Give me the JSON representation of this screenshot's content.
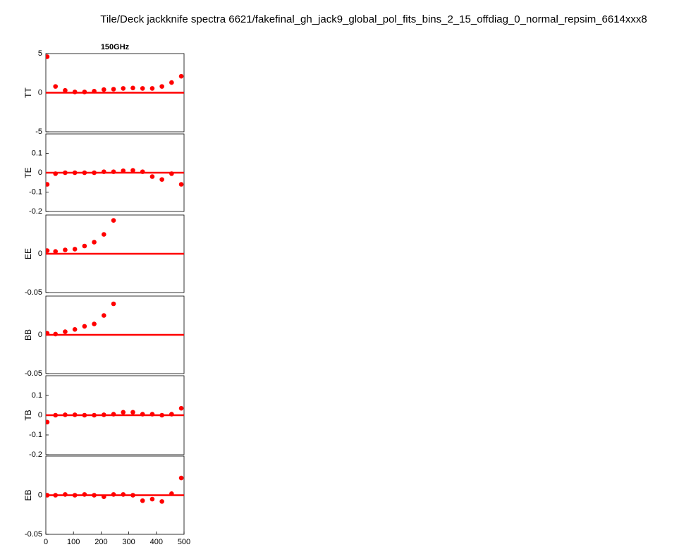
{
  "title": "Tile/Deck jackknife spectra 6621/fakefinal_gh_jack9_global_pol_fits_bins_2_15_offdiag_0_normal_repsim_6614xxx8",
  "chart_data": [
    {
      "type": "scatter",
      "title": "150GHz",
      "y_label": "TT",
      "color": "#ff0000",
      "x": [
        5,
        35,
        70,
        105,
        140,
        175,
        210,
        245,
        280,
        315,
        350,
        385,
        420,
        455,
        490
      ],
      "values": [
        4.6,
        0.8,
        0.3,
        0.1,
        0.1,
        0.2,
        0.4,
        0.45,
        0.55,
        0.6,
        0.55,
        0.55,
        0.8,
        1.3,
        2.1
      ],
      "xlim": [
        0,
        500
      ],
      "ylim": [
        -5,
        5
      ],
      "yticks": [
        -5,
        0,
        5
      ]
    },
    {
      "type": "scatter",
      "y_label": "TE",
      "color": "#ff0000",
      "x": [
        5,
        35,
        70,
        105,
        140,
        175,
        210,
        245,
        280,
        315,
        350,
        385,
        420,
        455,
        490
      ],
      "values": [
        -0.06,
        -0.005,
        0,
        0,
        0,
        0,
        0.005,
        0.005,
        0.01,
        0.012,
        0.005,
        -0.02,
        -0.035,
        -0.005,
        -0.06
      ],
      "xlim": [
        0,
        500
      ],
      "ylim": [
        -0.2,
        0.2
      ],
      "yticks": [
        -0.2,
        -0.1,
        0,
        0.1
      ]
    },
    {
      "type": "scatter",
      "y_label": "EE",
      "color": "#ff0000",
      "x": [
        5,
        35,
        70,
        105,
        140,
        175,
        210,
        245,
        280,
        315,
        350,
        385,
        420,
        455,
        490
      ],
      "values": [
        0.004,
        0.003,
        0.005,
        0.006,
        0.01,
        0.015,
        0.025,
        0.043,
        null,
        null,
        null,
        null,
        null,
        null,
        null
      ],
      "xlim": [
        0,
        500
      ],
      "ylim": [
        -0.05,
        0.05
      ],
      "yticks": [
        -0.05,
        0
      ]
    },
    {
      "type": "scatter",
      "y_label": "BB",
      "color": "#ff0000",
      "x": [
        5,
        35,
        70,
        105,
        140,
        175,
        210,
        245,
        280,
        315,
        350,
        385,
        420,
        455,
        490
      ],
      "values": [
        0.002,
        0.001,
        0.004,
        0.007,
        0.011,
        0.014,
        0.025,
        0.04,
        null,
        null,
        null,
        null,
        null,
        null,
        null
      ],
      "xlim": [
        0,
        500
      ],
      "ylim": [
        -0.05,
        0.05
      ],
      "yticks": [
        -0.05,
        0
      ]
    },
    {
      "type": "scatter",
      "y_label": "TB",
      "color": "#ff0000",
      "x": [
        5,
        35,
        70,
        105,
        140,
        175,
        210,
        245,
        280,
        315,
        350,
        385,
        420,
        455,
        490
      ],
      "values": [
        -0.035,
        0,
        0.002,
        0.002,
        0,
        0,
        0.002,
        0.005,
        0.015,
        0.015,
        0.005,
        0.005,
        0,
        0.005,
        0.035
      ],
      "xlim": [
        0,
        500
      ],
      "ylim": [
        -0.2,
        0.2
      ],
      "yticks": [
        -0.2,
        -0.1,
        0,
        0.1
      ]
    },
    {
      "type": "scatter",
      "y_label": "EB",
      "color": "#ff0000",
      "x": [
        5,
        35,
        70,
        105,
        140,
        175,
        210,
        245,
        280,
        315,
        350,
        385,
        420,
        455,
        490
      ],
      "values": [
        0,
        0,
        0.001,
        0,
        0.001,
        0,
        -0.002,
        0.001,
        0.001,
        0,
        -0.007,
        -0.005,
        -0.008,
        0.002,
        0.022
      ],
      "xlim": [
        0,
        500
      ],
      "ylim": [
        -0.05,
        0.05
      ],
      "yticks": [
        -0.05,
        0
      ],
      "xticks": [
        0,
        100,
        200,
        300,
        400,
        500
      ]
    }
  ]
}
